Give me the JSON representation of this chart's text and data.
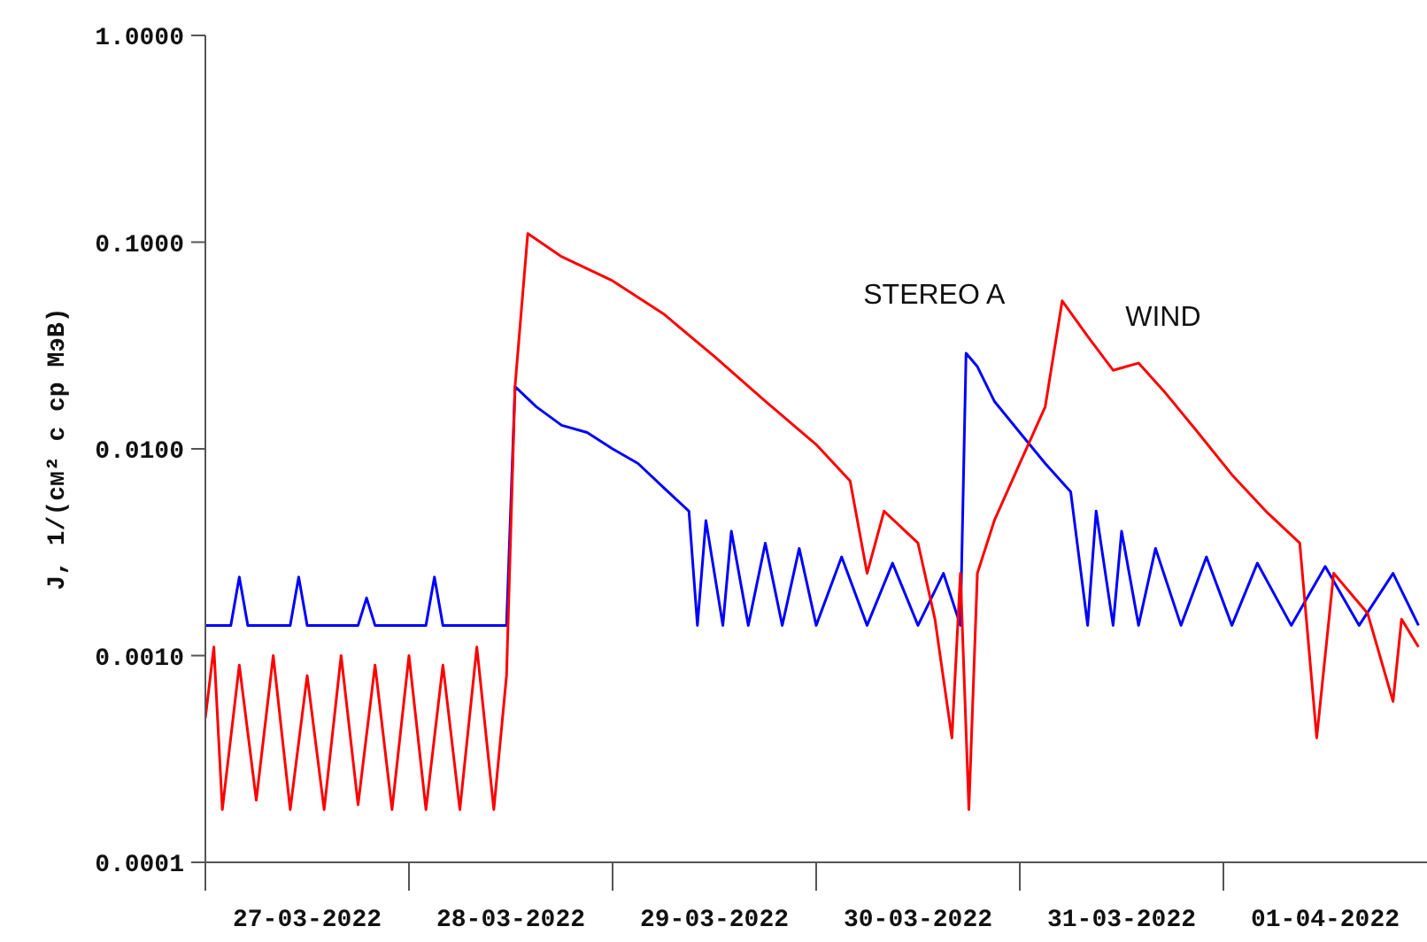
{
  "chart_data": {
    "type": "line",
    "ylabel": "J, 1/(см² с ср МэВ)",
    "log": "y",
    "marker": "none",
    "line_style": "solid",
    "xlim": [
      "2022-03-27",
      "2022-04-02"
    ],
    "xticks": [
      {
        "value": "2022-03-27",
        "label": null
      },
      {
        "value": "2022-03-27T12:00",
        "label": "27-03-2022"
      },
      {
        "value": "2022-03-28",
        "label": null
      },
      {
        "value": "2022-03-28T12:00",
        "label": "28-03-2022"
      },
      {
        "value": "2022-03-29",
        "label": null
      },
      {
        "value": "2022-03-29T12:00",
        "label": "29-03-2022"
      },
      {
        "value": "2022-03-30",
        "label": null
      },
      {
        "value": "2022-03-30T12:00",
        "label": "30-03-2022"
      },
      {
        "value": "2022-03-31",
        "label": null
      },
      {
        "value": "2022-03-31T12:00",
        "label": "31-03-2022"
      },
      {
        "value": "2022-04-01",
        "label": null
      },
      {
        "value": "2022-04-01T12:00",
        "label": "01-04-2022"
      }
    ],
    "ylim": [
      0.0001,
      1
    ],
    "yticks": [
      {
        "value": 0.0001,
        "label": "0.0001"
      },
      {
        "value": 0.001,
        "label": "0.0010"
      },
      {
        "value": 0.01,
        "label": "0.0100"
      },
      {
        "value": 0.1,
        "label": "0.1000"
      },
      {
        "value": 1,
        "label": "1.0000"
      }
    ],
    "series": [
      {
        "name": "STEREO A",
        "color": "#0000ff",
        "x": [
          "2022-03-27T00:00",
          "2022-03-27T03:00",
          "2022-03-27T04:00",
          "2022-03-27T05:00",
          "2022-03-27T10:00",
          "2022-03-27T11:00",
          "2022-03-27T12:00",
          "2022-03-27T18:00",
          "2022-03-27T19:00",
          "2022-03-27T20:00",
          "2022-03-28T02:00",
          "2022-03-28T03:00",
          "2022-03-28T04:00",
          "2022-03-28T11:30",
          "2022-03-28T12:30",
          "2022-03-28T15:00",
          "2022-03-28T18:00",
          "2022-03-28T21:00",
          "2022-03-29T00:00",
          "2022-03-29T03:00",
          "2022-03-29T06:00",
          "2022-03-29T09:00",
          "2022-03-29T10:00",
          "2022-03-29T11:00",
          "2022-03-29T13:00",
          "2022-03-29T14:00",
          "2022-03-29T16:00",
          "2022-03-29T18:00",
          "2022-03-29T20:00",
          "2022-03-29T22:00",
          "2022-03-30T00:00",
          "2022-03-30T03:00",
          "2022-03-30T06:00",
          "2022-03-30T09:00",
          "2022-03-30T12:00",
          "2022-03-30T15:00",
          "2022-03-30T17:00",
          "2022-03-30T17:40",
          "2022-03-30T19:00",
          "2022-03-30T21:00",
          "2022-03-31T00:00",
          "2022-03-31T03:00",
          "2022-03-31T06:00",
          "2022-03-31T08:00",
          "2022-03-31T09:00",
          "2022-03-31T11:00",
          "2022-03-31T12:00",
          "2022-03-31T14:00",
          "2022-03-31T16:00",
          "2022-03-31T19:00",
          "2022-03-31T22:00",
          "2022-04-01T01:00",
          "2022-04-01T04:00",
          "2022-04-01T08:00",
          "2022-04-01T12:00",
          "2022-04-01T16:00",
          "2022-04-01T20:00",
          "2022-04-01T23:00"
        ],
        "values": [
          0.0014,
          0.0014,
          0.0024,
          0.0014,
          0.0014,
          0.0024,
          0.0014,
          0.0014,
          0.0019,
          0.0014,
          0.0014,
          0.0024,
          0.0014,
          0.0014,
          0.02,
          0.016,
          0.013,
          0.012,
          0.01,
          0.0085,
          0.0065,
          0.005,
          0.0014,
          0.0045,
          0.0014,
          0.004,
          0.0014,
          0.0035,
          0.0014,
          0.0033,
          0.0014,
          0.003,
          0.0014,
          0.0028,
          0.0014,
          0.0025,
          0.0014,
          0.029,
          0.025,
          0.017,
          0.012,
          0.0085,
          0.0062,
          0.0014,
          0.005,
          0.0014,
          0.004,
          0.0014,
          0.0033,
          0.0014,
          0.003,
          0.0014,
          0.0028,
          0.0014,
          0.0027,
          0.0014,
          0.0025,
          0.0014
        ]
      },
      {
        "name": "WIND",
        "color": "#ff0000",
        "x": [
          "2022-03-27T00:00",
          "2022-03-27T01:00",
          "2022-03-27T02:00",
          "2022-03-27T04:00",
          "2022-03-27T06:00",
          "2022-03-27T08:00",
          "2022-03-27T10:00",
          "2022-03-27T12:00",
          "2022-03-27T14:00",
          "2022-03-27T16:00",
          "2022-03-27T18:00",
          "2022-03-27T20:00",
          "2022-03-27T22:00",
          "2022-03-28T00:00",
          "2022-03-28T02:00",
          "2022-03-28T04:00",
          "2022-03-28T06:00",
          "2022-03-28T08:00",
          "2022-03-28T10:00",
          "2022-03-28T11:30",
          "2022-03-28T12:30",
          "2022-03-28T14:00",
          "2022-03-28T18:00",
          "2022-03-29T00:00",
          "2022-03-29T06:00",
          "2022-03-29T12:00",
          "2022-03-29T18:00",
          "2022-03-30T00:00",
          "2022-03-30T04:00",
          "2022-03-30T06:00",
          "2022-03-30T08:00",
          "2022-03-30T12:00",
          "2022-03-30T14:00",
          "2022-03-30T16:00",
          "2022-03-30T17:00",
          "2022-03-30T18:00",
          "2022-03-30T19:00",
          "2022-03-30T21:00",
          "2022-03-31T00:00",
          "2022-03-31T03:00",
          "2022-03-31T05:00",
          "2022-03-31T08:00",
          "2022-03-31T11:00",
          "2022-03-31T14:00",
          "2022-03-31T17:00",
          "2022-03-31T21:00",
          "2022-04-01T01:00",
          "2022-04-01T05:00",
          "2022-04-01T09:00",
          "2022-04-01T11:00",
          "2022-04-01T13:00",
          "2022-04-01T17:00",
          "2022-04-01T20:00",
          "2022-04-01T21:00",
          "2022-04-01T23:00"
        ],
        "values": [
          0.0005,
          0.0011,
          0.00018,
          0.0009,
          0.0002,
          0.001,
          0.00018,
          0.0008,
          0.00018,
          0.001,
          0.00019,
          0.0009,
          0.00018,
          0.001,
          0.00018,
          0.0009,
          0.00018,
          0.0011,
          0.00018,
          0.0008,
          0.02,
          0.11,
          0.085,
          0.065,
          0.045,
          0.028,
          0.017,
          0.0105,
          0.007,
          0.0025,
          0.005,
          0.0035,
          0.0015,
          0.0004,
          0.0025,
          0.00018,
          0.0025,
          0.0045,
          0.0085,
          0.016,
          0.052,
          0.035,
          0.024,
          0.026,
          0.019,
          0.012,
          0.0075,
          0.005,
          0.0035,
          0.0004,
          0.0025,
          0.0016,
          0.0006,
          0.0015,
          0.0011
        ]
      }
    ]
  }
}
